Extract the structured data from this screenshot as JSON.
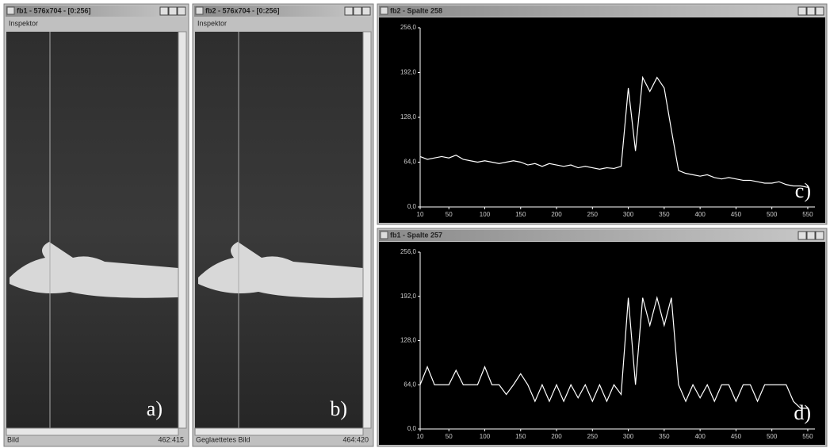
{
  "windows": [
    {
      "title": "fb1 - 576x704 - [0:256]",
      "menu": "Inspektor",
      "status_left": "Bild",
      "status_right": "462:415",
      "label": "a)"
    },
    {
      "title": "fb2 - 576x704 - [0:256]",
      "menu": "Inspektor",
      "status_left": "Geglaettetes Bild",
      "status_right": "464:420",
      "label": "b)"
    }
  ],
  "chart_data": [
    {
      "type": "line",
      "title": "fb2 - Spalte 258",
      "label": "c)",
      "x": [
        10,
        20,
        30,
        40,
        50,
        60,
        70,
        80,
        90,
        100,
        110,
        120,
        130,
        140,
        150,
        160,
        170,
        180,
        190,
        200,
        210,
        220,
        230,
        240,
        250,
        260,
        270,
        280,
        290,
        300,
        310,
        320,
        330,
        340,
        350,
        360,
        370,
        380,
        390,
        400,
        410,
        420,
        430,
        440,
        450,
        460,
        470,
        480,
        490,
        500,
        510,
        520,
        530,
        540,
        550
      ],
      "series": [
        {
          "color": "#ffffff",
          "values": [
            72,
            68,
            70,
            72,
            70,
            74,
            68,
            66,
            64,
            66,
            64,
            62,
            64,
            66,
            64,
            60,
            62,
            58,
            62,
            60,
            58,
            60,
            56,
            58,
            56,
            54,
            56,
            55,
            58,
            170,
            80,
            185,
            165,
            185,
            170,
            110,
            52,
            48,
            46,
            44,
            46,
            42,
            40,
            42,
            40,
            38,
            38,
            36,
            34,
            34,
            36,
            32,
            30,
            30,
            28
          ]
        }
      ],
      "xlim": [
        10,
        560
      ],
      "xticks": [
        10,
        50,
        100,
        150,
        200,
        250,
        300,
        350,
        400,
        450,
        500,
        550
      ],
      "ylim": [
        0,
        256
      ],
      "yticks": [
        {
          "value": 0,
          "label": "0,0"
        },
        {
          "value": 64,
          "label": "64,0"
        },
        {
          "value": 128,
          "label": "128,0"
        },
        {
          "value": 192,
          "label": "192,0"
        },
        {
          "value": 256,
          "label": "256,0"
        }
      ]
    },
    {
      "type": "line",
      "title": "fb1 - Spalte 257",
      "label": "d)",
      "x": [
        10,
        20,
        30,
        40,
        50,
        60,
        70,
        80,
        90,
        100,
        110,
        120,
        130,
        140,
        150,
        160,
        170,
        180,
        190,
        200,
        210,
        220,
        230,
        240,
        250,
        260,
        270,
        280,
        290,
        300,
        310,
        320,
        330,
        340,
        350,
        360,
        370,
        380,
        390,
        400,
        410,
        420,
        430,
        440,
        450,
        460,
        470,
        480,
        490,
        500,
        510,
        520,
        530,
        540,
        550
      ],
      "series": [
        {
          "color": "#ffffff",
          "values": [
            64,
            90,
            64,
            64,
            64,
            85,
            64,
            64,
            64,
            90,
            64,
            64,
            50,
            64,
            80,
            64,
            40,
            64,
            40,
            64,
            40,
            64,
            45,
            64,
            40,
            64,
            40,
            64,
            50,
            190,
            64,
            190,
            150,
            190,
            150,
            190,
            64,
            40,
            64,
            45,
            64,
            40,
            64,
            64,
            40,
            64,
            64,
            40,
            64,
            64,
            64,
            64,
            40,
            30,
            30
          ]
        }
      ],
      "xlim": [
        10,
        560
      ],
      "xticks": [
        10,
        50,
        100,
        150,
        200,
        250,
        300,
        350,
        400,
        450,
        500,
        550
      ],
      "ylim": [
        0,
        256
      ],
      "yticks": [
        {
          "value": 0,
          "label": "0,0"
        },
        {
          "value": 64,
          "label": "64,0"
        },
        {
          "value": 128,
          "label": "128,0"
        },
        {
          "value": 192,
          "label": "192,0"
        },
        {
          "value": 256,
          "label": "256,0"
        }
      ]
    }
  ]
}
